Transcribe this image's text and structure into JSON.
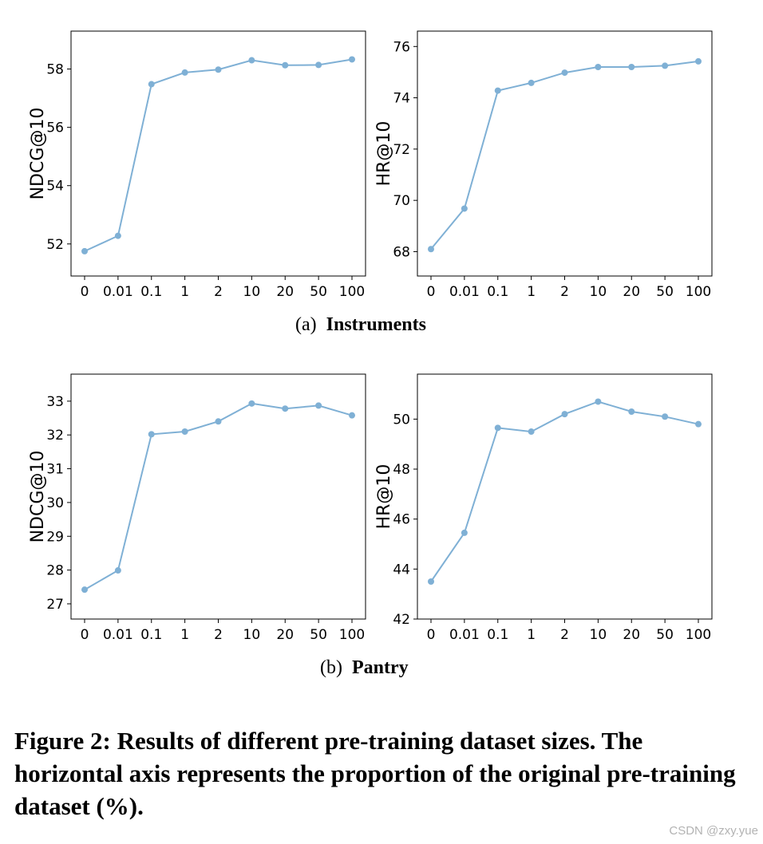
{
  "chart_data": [
    {
      "type": "line",
      "group": "Instruments",
      "categories": [
        "0",
        "0.01",
        "0.1",
        "1",
        "2",
        "10",
        "20",
        "50",
        "100"
      ],
      "ylabel": "NDCG@10",
      "yticks": [
        "52",
        "54",
        "56",
        "58"
      ],
      "ylim": [
        50.9,
        59.3
      ],
      "values": [
        51.75,
        52.28,
        57.48,
        57.88,
        57.98,
        58.3,
        58.13,
        58.14,
        58.33
      ],
      "color": "#7fb0d5"
    },
    {
      "type": "line",
      "group": "Instruments",
      "categories": [
        "0",
        "0.01",
        "0.1",
        "1",
        "2",
        "10",
        "20",
        "50",
        "100"
      ],
      "ylabel": "HR@10",
      "yticks": [
        "68",
        "70",
        "72",
        "74",
        "76"
      ],
      "ylim": [
        67.05,
        76.6
      ],
      "values": [
        68.1,
        69.68,
        74.28,
        74.58,
        74.98,
        75.2,
        75.2,
        75.25,
        75.42
      ],
      "color": "#7fb0d5"
    },
    {
      "type": "line",
      "group": "Pantry",
      "categories": [
        "0",
        "0.01",
        "0.1",
        "1",
        "2",
        "10",
        "20",
        "50",
        "100"
      ],
      "ylabel": "NDCG@10",
      "yticks": [
        "27",
        "28",
        "29",
        "30",
        "31",
        "32",
        "33"
      ],
      "ylim": [
        26.55,
        33.8
      ],
      "values": [
        27.42,
        27.99,
        32.02,
        32.1,
        32.4,
        32.93,
        32.78,
        32.87,
        32.58
      ],
      "color": "#7fb0d5"
    },
    {
      "type": "line",
      "group": "Pantry",
      "categories": [
        "0",
        "0.01",
        "0.1",
        "1",
        "2",
        "10",
        "20",
        "50",
        "100"
      ],
      "ylabel": "HR@10",
      "yticks": [
        "42",
        "44",
        "46",
        "48",
        "50"
      ],
      "ylim": [
        42.0,
        51.8
      ],
      "values": [
        43.5,
        45.45,
        49.65,
        49.5,
        50.2,
        50.7,
        50.3,
        50.1,
        49.8
      ],
      "color": "#7fb0d5"
    }
  ],
  "subcaptions": [
    {
      "label": "(a)",
      "name": "Instruments"
    },
    {
      "label": "(b)",
      "name": "Pantry"
    }
  ],
  "figure_caption": "Figure 2: Results of different pre-training dataset sizes. The horizontal axis represents the proportion of the original pre-training dataset (%).",
  "watermark": "CSDN @zxy.yue"
}
